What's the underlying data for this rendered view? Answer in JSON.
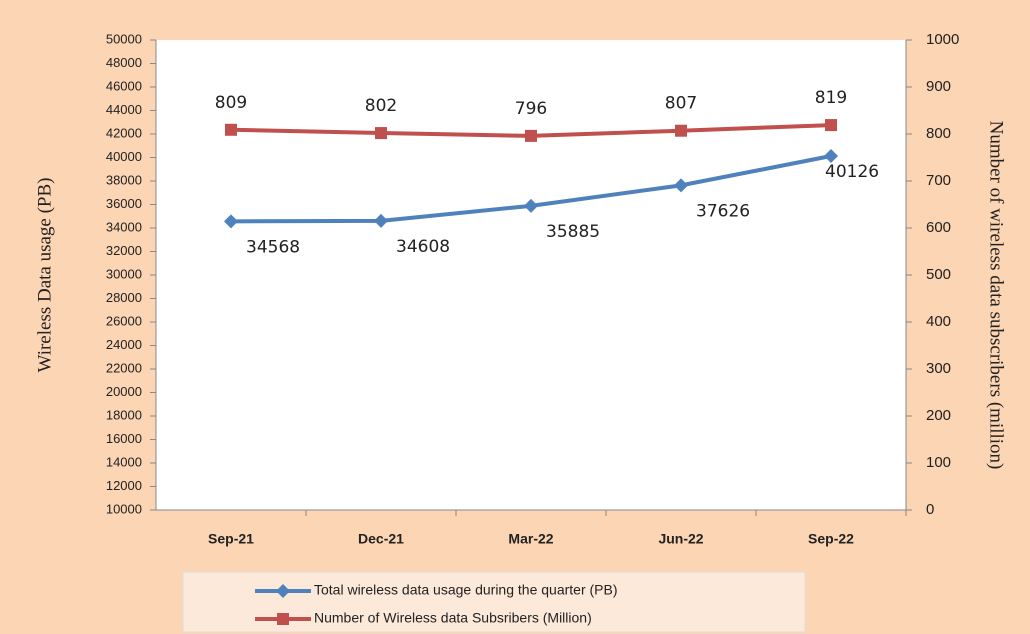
{
  "chart_data": {
    "type": "line",
    "categories": [
      "Sep-21",
      "Dec-21",
      "Mar-22",
      "Jun-22",
      "Sep-22"
    ],
    "series": [
      {
        "name": "Total wireless data usage during the quarter (PB)",
        "color": "#4f81bd",
        "values": [
          34568,
          34608,
          35885,
          37626,
          40126
        ]
      },
      {
        "name": "Number of Wireless data Subsribers (Million)",
        "color": "#c0504d",
        "values": [
          809,
          802,
          796,
          807,
          819
        ],
        "axis": "y2"
      }
    ],
    "ylabel": "Wireless Data usage (PB)",
    "y2label": "Number of wireless data subscribers (million)",
    "ylim": [
      10000,
      50000
    ],
    "yticks": [
      10000,
      12000,
      14000,
      16000,
      18000,
      20000,
      22000,
      24000,
      26000,
      28000,
      30000,
      32000,
      34000,
      36000,
      38000,
      40000,
      42000,
      44000,
      46000,
      48000,
      50000
    ],
    "y2lim": [
      0,
      1000
    ],
    "y2ticks": [
      0,
      100,
      200,
      300,
      400,
      500,
      600,
      700,
      800,
      900,
      1000
    ],
    "legend": "bottom"
  }
}
